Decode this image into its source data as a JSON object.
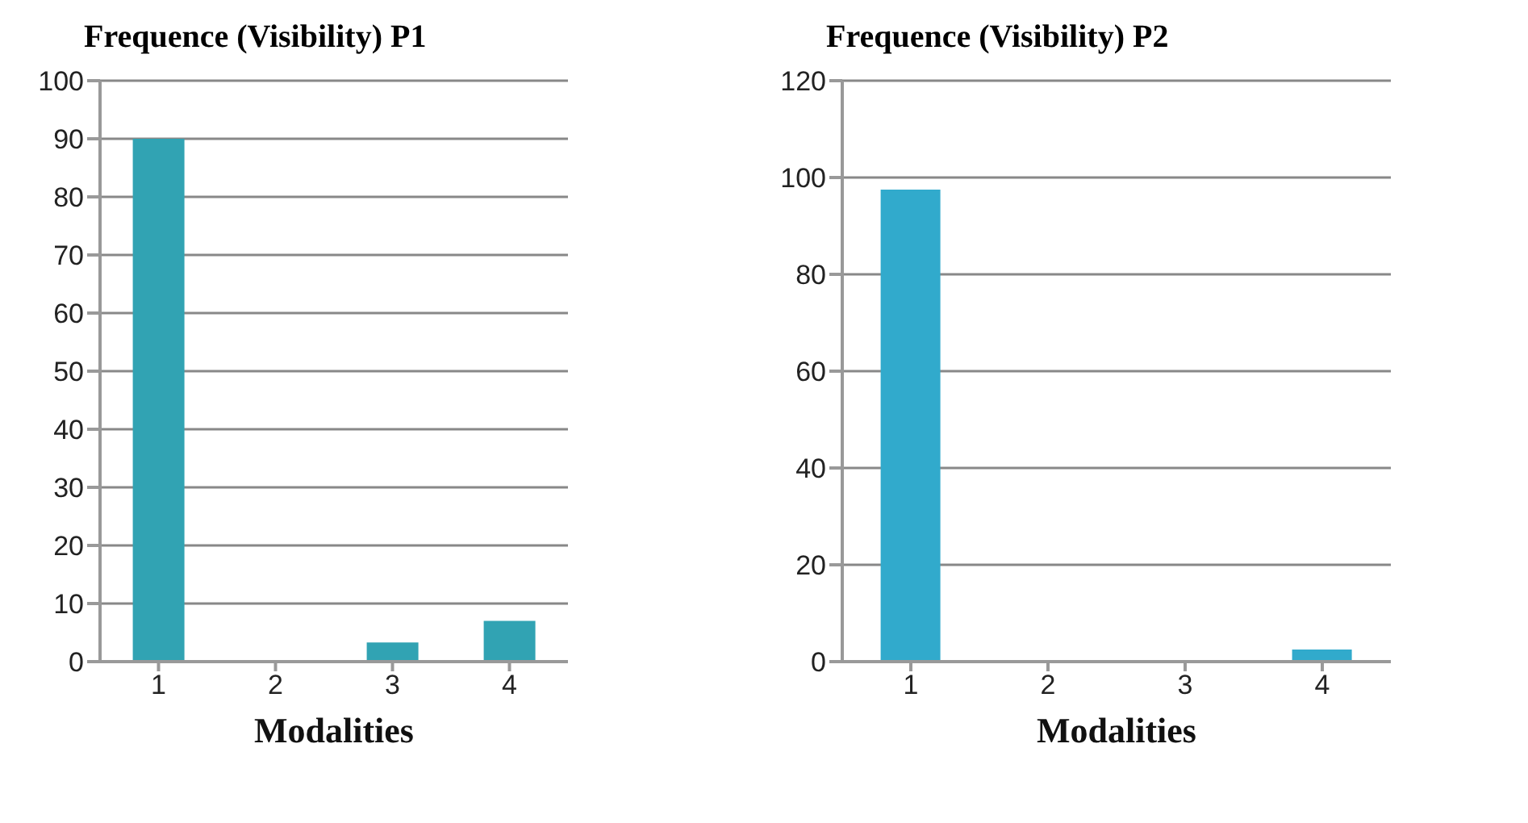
{
  "chart_data": [
    {
      "type": "bar",
      "title": "Frequence (Visibility) P1",
      "xlabel": "Modalities",
      "categories": [
        "1",
        "2",
        "3",
        "4"
      ],
      "values": [
        90,
        0,
        3.3,
        7
      ],
      "color": "#31a3b3",
      "ylim": [
        0,
        100
      ],
      "yticks": [
        0,
        10,
        20,
        30,
        40,
        50,
        60,
        70,
        80,
        90,
        100
      ],
      "grid": "y",
      "legend": false
    },
    {
      "type": "bar",
      "title": "Frequence (Visibility) P2",
      "xlabel": "Modalities",
      "categories": [
        "1",
        "2",
        "3",
        "4"
      ],
      "values": [
        97.5,
        0,
        0,
        2.5
      ],
      "color": "#31aacc",
      "ylim": [
        0,
        120
      ],
      "yticks": [
        0,
        20,
        40,
        60,
        80,
        100,
        120
      ],
      "grid": "y",
      "legend": false
    }
  ]
}
